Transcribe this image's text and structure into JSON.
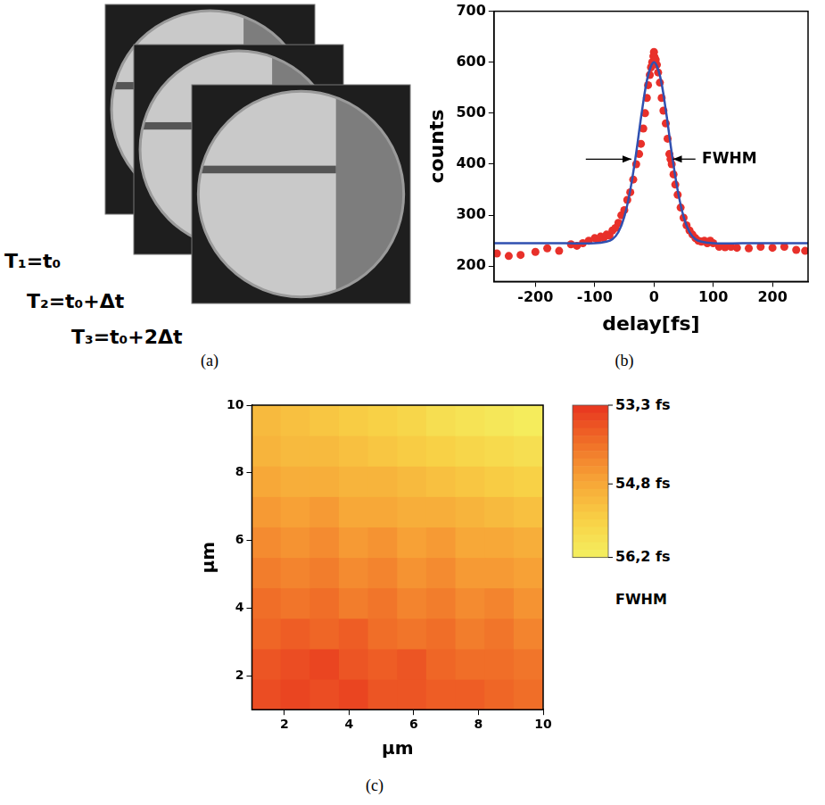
{
  "panel_a": {
    "frame_labels": [
      "T₁=t₀",
      "T₂=t₀+Δt",
      "T₃=t₀+2Δt"
    ],
    "caption": "(a)"
  },
  "chart_data": [
    {
      "type": "scatter",
      "caption": "(b)",
      "x_label": "delay[fs]",
      "y_label": "counts",
      "xlim": [
        -270,
        260
      ],
      "xticks": [
        -200,
        -100,
        0,
        100,
        200
      ],
      "ylim": [
        170,
        700
      ],
      "yticks": [
        200,
        300,
        400,
        500,
        600,
        700
      ],
      "grid": false,
      "series": [
        {
          "type": "scatter",
          "color": "#e8302a",
          "marker": "circle",
          "x": [
            -265,
            -245,
            -225,
            -200,
            -180,
            -160,
            -140,
            -130,
            -120,
            -110,
            -100,
            -95,
            -90,
            -85,
            -80,
            -75,
            -70,
            -65,
            -60,
            -55,
            -50,
            -45,
            -40,
            -35,
            -30,
            -25,
            -22,
            -18,
            -15,
            -12,
            -10,
            -7,
            -5,
            -3,
            -1,
            0,
            1,
            3,
            5,
            7,
            10,
            13,
            16,
            20,
            23,
            26,
            28,
            30,
            33,
            36,
            40,
            45,
            50,
            55,
            60,
            65,
            70,
            75,
            80,
            85,
            90,
            95,
            100,
            110,
            120,
            130,
            140,
            160,
            180,
            200,
            220,
            240,
            255
          ],
          "values": [
            225,
            220,
            222,
            228,
            235,
            230,
            243,
            240,
            245,
            250,
            255,
            252,
            258,
            255,
            262,
            260,
            270,
            275,
            285,
            300,
            310,
            330,
            345,
            370,
            400,
            420,
            440,
            470,
            500,
            530,
            555,
            575,
            590,
            600,
            612,
            620,
            610,
            605,
            595,
            580,
            560,
            530,
            505,
            480,
            450,
            420,
            410,
            400,
            380,
            360,
            340,
            315,
            295,
            280,
            270,
            262,
            255,
            250,
            248,
            250,
            245,
            250,
            245,
            238,
            237,
            238,
            236,
            235,
            238,
            236,
            238,
            232,
            230
          ]
        },
        {
          "type": "line",
          "color": "#3050b0",
          "line_style": "solid",
          "x": [
            -270,
            -150,
            -100,
            -80,
            -70,
            -60,
            -50,
            -40,
            -30,
            -20,
            -10,
            0,
            10,
            20,
            30,
            40,
            50,
            60,
            70,
            80,
            100,
            150,
            260
          ],
          "values": [
            245,
            245,
            245,
            248,
            253,
            267,
            297,
            349,
            422,
            506,
            574,
            600,
            574,
            506,
            422,
            349,
            297,
            267,
            253,
            248,
            245,
            245,
            245
          ]
        }
      ],
      "annotations": [
        {
          "text": "FWHM",
          "x": 75,
          "y": 410,
          "arrows": [
            {
              "from": -115,
              "to": -38
            },
            {
              "from": 70,
              "to": 32
            }
          ]
        }
      ]
    },
    {
      "type": "heatmap",
      "caption": "(c)",
      "x_label": "μm",
      "y_label": "μm",
      "xlim": [
        1,
        10
      ],
      "xticks": [
        2,
        4,
        6,
        8,
        10
      ],
      "ylim": [
        1,
        10
      ],
      "yticks": [
        2,
        4,
        6,
        8,
        10
      ],
      "grid": false,
      "x": [
        1.45,
        2.35,
        3.25,
        4.15,
        5.05,
        5.95,
        6.85,
        7.75,
        8.65,
        9.55
      ],
      "y": [
        1.45,
        2.35,
        3.25,
        4.15,
        5.05,
        5.95,
        6.85,
        7.75,
        8.65,
        9.55
      ],
      "z": [
        [
          53.6,
          53.5,
          53.6,
          53.5,
          53.7,
          53.7,
          53.8,
          53.8,
          53.9,
          54.0
        ],
        [
          53.7,
          53.6,
          53.5,
          53.7,
          53.8,
          53.7,
          53.9,
          54.0,
          54.0,
          54.1
        ],
        [
          53.9,
          53.8,
          53.9,
          53.8,
          54.0,
          54.1,
          54.0,
          54.2,
          54.1,
          54.3
        ],
        [
          54.0,
          54.1,
          54.0,
          54.2,
          54.1,
          54.3,
          54.2,
          54.4,
          54.3,
          54.5
        ],
        [
          54.2,
          54.3,
          54.2,
          54.4,
          54.3,
          54.5,
          54.4,
          54.6,
          54.6,
          54.7
        ],
        [
          54.4,
          54.5,
          54.4,
          54.6,
          54.5,
          54.7,
          54.6,
          54.8,
          54.8,
          54.9
        ],
        [
          54.6,
          54.7,
          54.6,
          54.8,
          54.8,
          54.9,
          54.9,
          55.0,
          55.1,
          55.2
        ],
        [
          54.8,
          54.9,
          54.9,
          55.0,
          55.0,
          55.1,
          55.2,
          55.3,
          55.4,
          55.5
        ],
        [
          55.0,
          55.1,
          55.1,
          55.2,
          55.3,
          55.4,
          55.5,
          55.6,
          55.7,
          55.8
        ],
        [
          55.1,
          55.2,
          55.3,
          55.4,
          55.5,
          55.6,
          55.8,
          55.9,
          56.0,
          56.1
        ]
      ],
      "color_bar": {
        "range": [
          53.3,
          56.2
        ],
        "ticks": [
          {
            "value": 53.3,
            "label": "53,3 fs"
          },
          {
            "value": 54.8,
            "label": "54,8 fs"
          },
          {
            "value": 56.2,
            "label": "56,2 fs"
          }
        ],
        "label": "FWHM",
        "colors": [
          "#e8341f",
          "#f07028",
          "#f7a537",
          "#f8d045",
          "#f4f060"
        ]
      }
    }
  ]
}
